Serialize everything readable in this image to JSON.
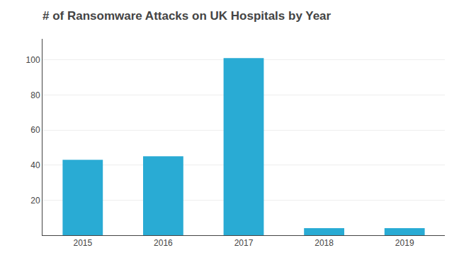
{
  "chart_data": {
    "type": "bar",
    "title": "# of Ransomware Attacks on UK Hospitals by Year",
    "categories": [
      "2015",
      "2016",
      "2017",
      "2018",
      "2019"
    ],
    "values": [
      43,
      45,
      101,
      4,
      4
    ],
    "color": "#29ABD4",
    "ylim": [
      0,
      112
    ],
    "yticks": [
      20,
      40,
      60,
      80,
      100
    ],
    "grid": true
  }
}
